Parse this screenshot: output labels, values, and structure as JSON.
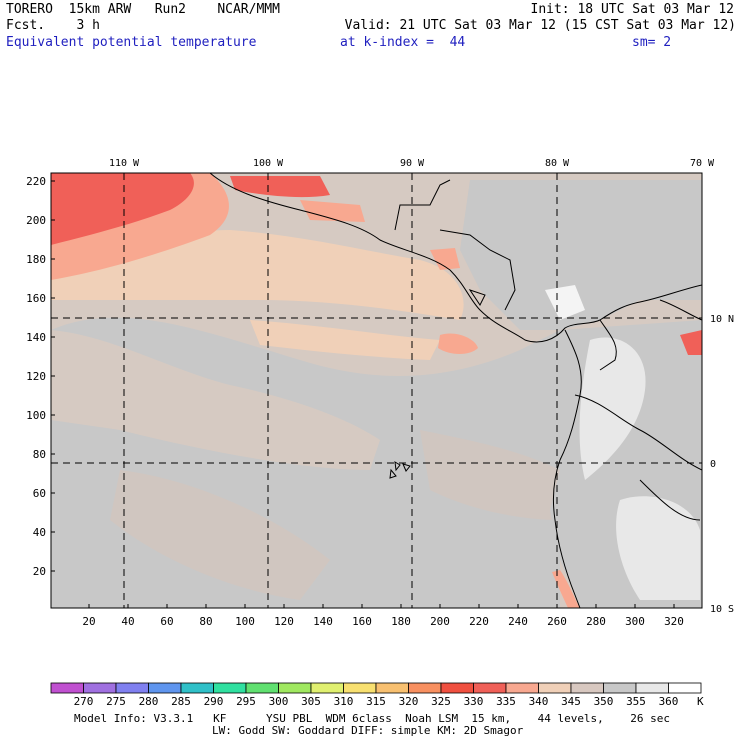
{
  "header": {
    "line1_left": "TORERO  15km ARW   Run2    NCAR/MMM",
    "line1_right": "Init: 18 UTC Sat 03 Mar 12",
    "line2_left": "Fcst.    3 h",
    "line2_right": "Valid: 21 UTC Sat 03 Mar 12 (15 CST Sat 03 Mar 12)",
    "field_name": "Equivalent potential temperature",
    "level": "at k-index =  44",
    "smoothing": "sm= 2"
  },
  "longitude_labels": [
    "110 W",
    "100 W",
    "90 W",
    "80 W",
    "70 W"
  ],
  "latitude_labels": [
    "10 N",
    "0",
    "10 S"
  ],
  "y_axis_ticks": [
    "220",
    "200",
    "180",
    "160",
    "140",
    "120",
    "100",
    "80",
    "60",
    "40",
    "20"
  ],
  "x_axis_ticks": [
    "20",
    "40",
    "60",
    "80",
    "100",
    "120",
    "140",
    "160",
    "180",
    "200",
    "220",
    "240",
    "260",
    "280",
    "300",
    "320"
  ],
  "colorbar": {
    "labels": [
      "270",
      "275",
      "280",
      "285",
      "290",
      "295",
      "300",
      "305",
      "310",
      "315",
      "320",
      "325",
      "330",
      "335",
      "340",
      "345",
      "350",
      "355",
      "360"
    ],
    "unit": "K",
    "colors": [
      "#c050d0",
      "#a070e0",
      "#8080f0",
      "#5f95ee",
      "#30c0c8",
      "#30e0a0",
      "#60e070",
      "#a0e860",
      "#e0f070",
      "#f8e070",
      "#f8c070",
      "#f89060",
      "#f05040",
      "#f06058",
      "#f8a890",
      "#f0d0b8",
      "#d8c8c0",
      "#c8c8c8",
      "#e8e8e8",
      "#ffffff"
    ]
  },
  "footer": {
    "model_info": "Model Info: V3.3.1   KF      YSU PBL  WDM 6class  Noah LSM  15 km,    44 levels,    26 sec",
    "model_info2": "LW: Godd SW: Goddard DIFF: simple KM: 2D Smagor"
  }
}
